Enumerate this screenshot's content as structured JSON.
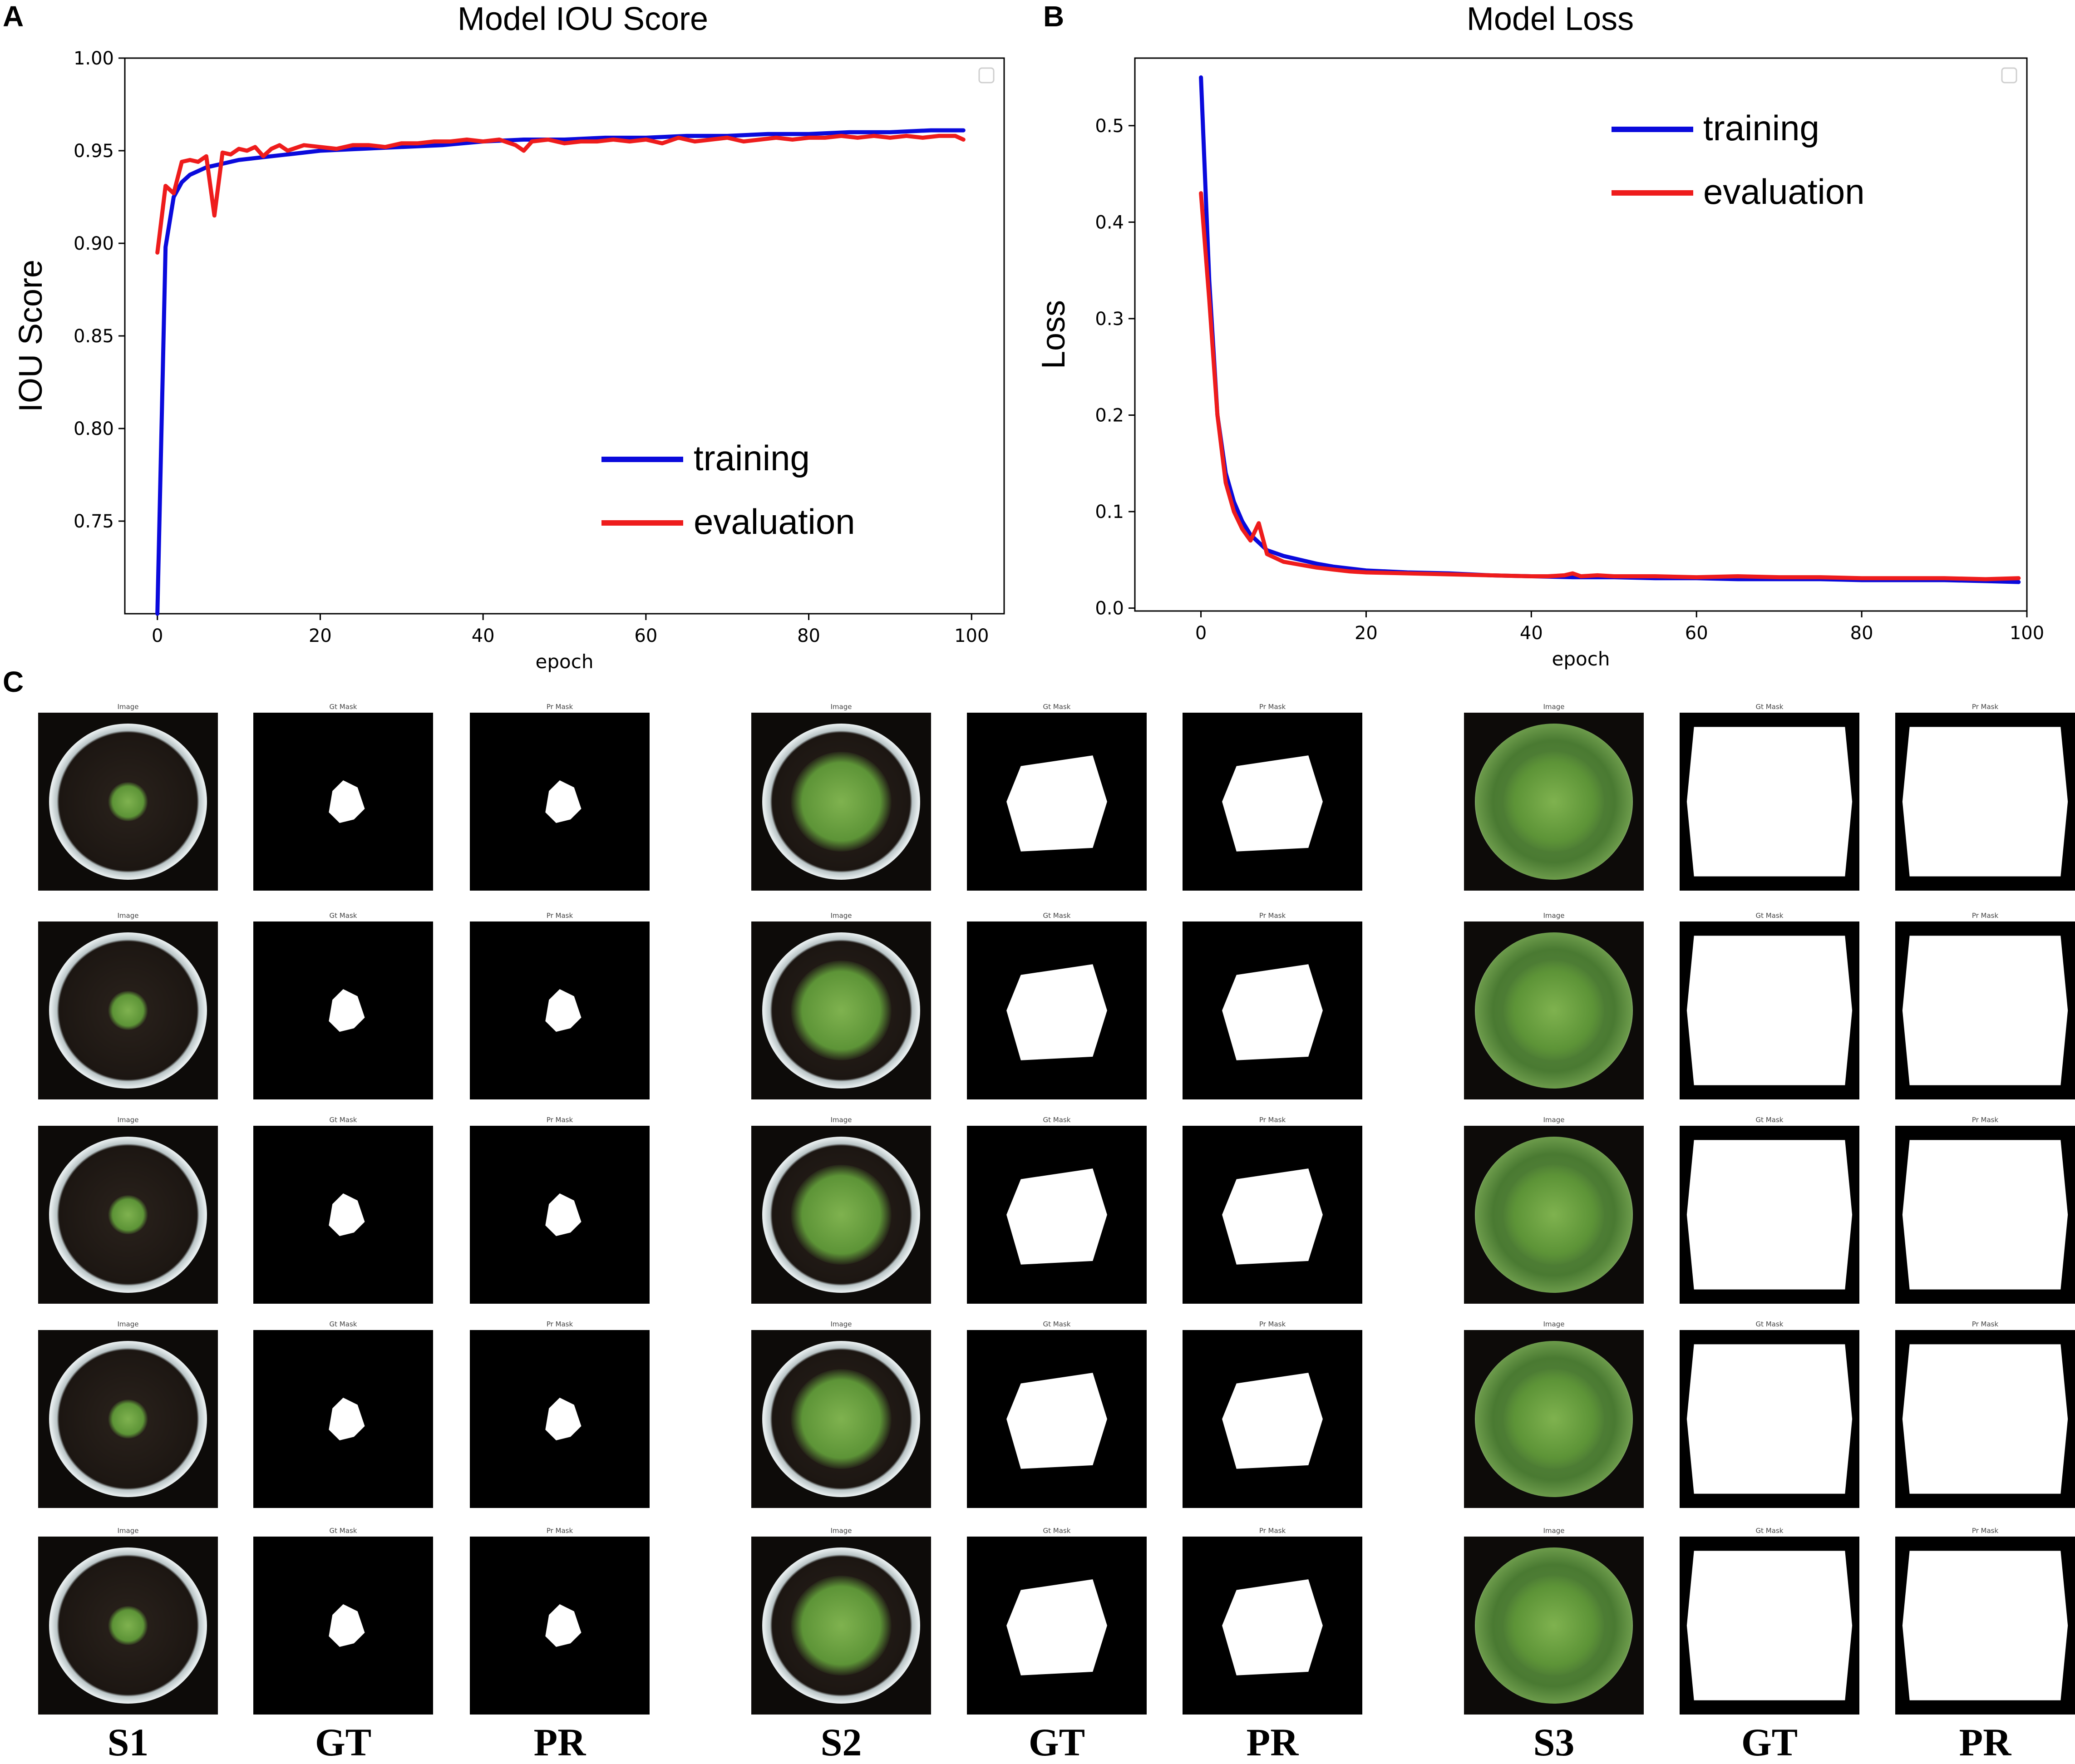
{
  "panels": {
    "a": "A",
    "b": "B",
    "c": "C"
  },
  "chart_data": [
    {
      "type": "line",
      "title": "Model IOU Score",
      "xlabel": "epoch",
      "ylabel": "IOU Score",
      "xlim": [
        -4,
        104
      ],
      "ylim": [
        0.7,
        1.0
      ],
      "xticks": [
        "0",
        "20",
        "40",
        "60",
        "80",
        "100"
      ],
      "yticks": [
        "0.75",
        "0.80",
        "0.85",
        "0.90",
        "0.95",
        "1.00"
      ],
      "legend_position": "lower-right",
      "series": [
        {
          "name": "training",
          "color": "#0a0adc",
          "x": [
            0,
            1,
            2,
            3,
            4,
            5,
            6,
            8,
            10,
            12,
            14,
            16,
            18,
            20,
            25,
            30,
            35,
            40,
            45,
            50,
            55,
            60,
            65,
            70,
            75,
            80,
            85,
            90,
            95,
            99
          ],
          "y": [
            0.7,
            0.898,
            0.925,
            0.933,
            0.937,
            0.939,
            0.941,
            0.943,
            0.945,
            0.946,
            0.947,
            0.948,
            0.949,
            0.95,
            0.951,
            0.952,
            0.953,
            0.955,
            0.956,
            0.956,
            0.957,
            0.957,
            0.958,
            0.958,
            0.959,
            0.959,
            0.96,
            0.96,
            0.961,
            0.961
          ]
        },
        {
          "name": "evaluation",
          "color": "#ee1c1c",
          "x": [
            0,
            1,
            2,
            3,
            4,
            5,
            6,
            7,
            8,
            9,
            10,
            11,
            12,
            13,
            14,
            15,
            16,
            18,
            20,
            22,
            24,
            26,
            28,
            30,
            32,
            34,
            36,
            38,
            40,
            42,
            44,
            45,
            46,
            48,
            50,
            52,
            54,
            56,
            58,
            60,
            62,
            64,
            66,
            68,
            70,
            72,
            74,
            76,
            78,
            80,
            82,
            84,
            86,
            88,
            90,
            92,
            94,
            96,
            98,
            99
          ],
          "y": [
            0.895,
            0.931,
            0.927,
            0.944,
            0.945,
            0.944,
            0.947,
            0.915,
            0.949,
            0.948,
            0.951,
            0.95,
            0.952,
            0.947,
            0.951,
            0.953,
            0.95,
            0.953,
            0.952,
            0.951,
            0.953,
            0.953,
            0.952,
            0.954,
            0.954,
            0.955,
            0.955,
            0.956,
            0.955,
            0.956,
            0.953,
            0.95,
            0.955,
            0.956,
            0.954,
            0.955,
            0.955,
            0.956,
            0.955,
            0.956,
            0.954,
            0.957,
            0.955,
            0.956,
            0.957,
            0.955,
            0.956,
            0.957,
            0.956,
            0.957,
            0.957,
            0.958,
            0.957,
            0.958,
            0.957,
            0.958,
            0.957,
            0.958,
            0.958,
            0.956
          ]
        }
      ]
    },
    {
      "type": "line",
      "title": "Model Loss",
      "xlabel": "epoch",
      "ylabel": "Loss",
      "xlim": [
        -8,
        100
      ],
      "ylim": [
        -0.003,
        0.57
      ],
      "xticks": [
        "0",
        "20",
        "40",
        "60",
        "80",
        "100"
      ],
      "yticks": [
        "0.0",
        "0.1",
        "0.2",
        "0.3",
        "0.4",
        "0.5"
      ],
      "legend_position": "upper-right",
      "series": [
        {
          "name": "training",
          "color": "#0a0adc",
          "x": [
            0,
            1,
            2,
            3,
            4,
            5,
            6,
            7,
            8,
            10,
            12,
            14,
            16,
            18,
            20,
            25,
            30,
            35,
            40,
            45,
            50,
            55,
            60,
            65,
            70,
            75,
            80,
            85,
            90,
            95,
            99
          ],
          "y": [
            0.55,
            0.34,
            0.2,
            0.14,
            0.11,
            0.09,
            0.076,
            0.068,
            0.06,
            0.054,
            0.05,
            0.046,
            0.043,
            0.041,
            0.039,
            0.037,
            0.036,
            0.034,
            0.033,
            0.032,
            0.032,
            0.031,
            0.031,
            0.03,
            0.03,
            0.03,
            0.029,
            0.029,
            0.029,
            0.028,
            0.027
          ]
        },
        {
          "name": "evaluation",
          "color": "#ee1c1c",
          "x": [
            0,
            1,
            2,
            3,
            4,
            5,
            6,
            7,
            8,
            10,
            12,
            14,
            16,
            18,
            20,
            25,
            30,
            35,
            40,
            42,
            44,
            45,
            46,
            48,
            50,
            55,
            60,
            65,
            70,
            75,
            80,
            85,
            90,
            95,
            99
          ],
          "y": [
            0.43,
            0.32,
            0.2,
            0.13,
            0.1,
            0.082,
            0.07,
            0.088,
            0.056,
            0.048,
            0.045,
            0.042,
            0.04,
            0.038,
            0.037,
            0.036,
            0.035,
            0.034,
            0.033,
            0.033,
            0.034,
            0.036,
            0.033,
            0.034,
            0.033,
            0.033,
            0.032,
            0.033,
            0.032,
            0.032,
            0.031,
            0.031,
            0.031,
            0.03,
            0.031
          ]
        }
      ]
    }
  ],
  "grid": {
    "headers": {
      "image": "Image",
      "gt": "Gt Mask",
      "pr": "Pr Mask"
    },
    "column_labels": [
      "S1",
      "GT",
      "PR",
      "S2",
      "GT",
      "PR",
      "S3",
      "GT",
      "PR"
    ]
  }
}
